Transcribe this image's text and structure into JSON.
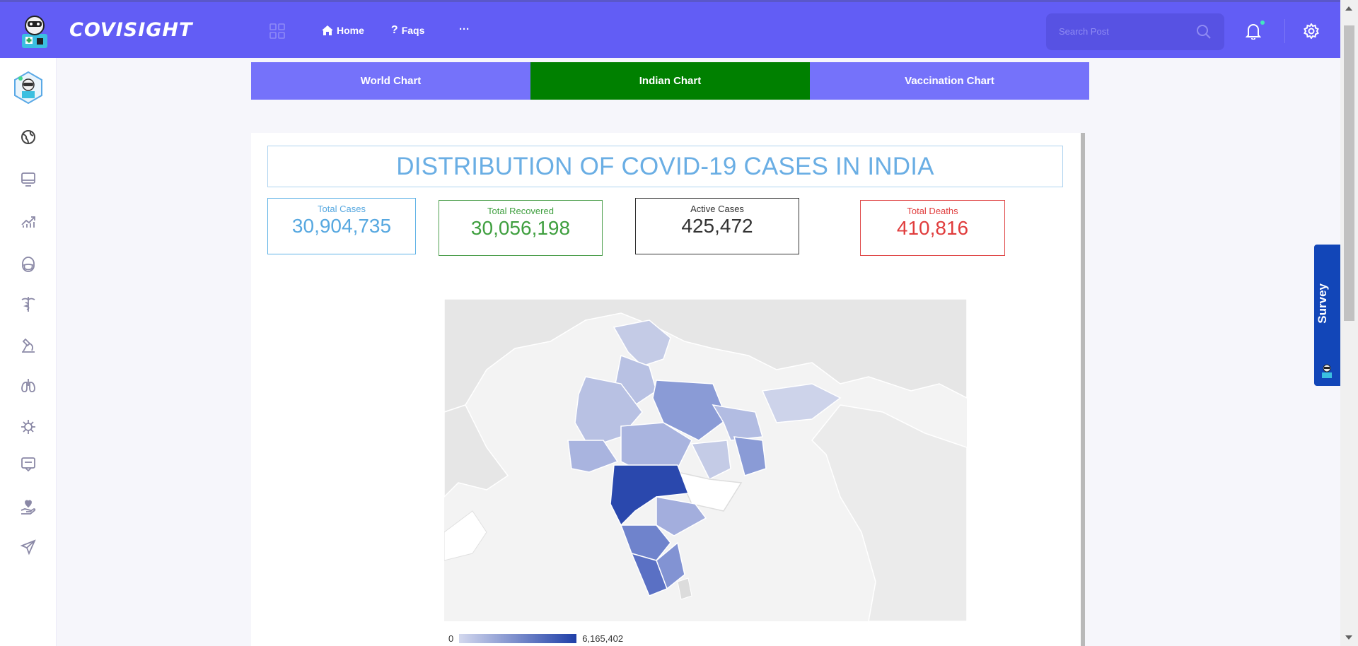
{
  "header": {
    "brand": "COVISIGHT",
    "nav": [
      {
        "icon": "home-icon",
        "label": "Home"
      },
      {
        "icon": "question-icon",
        "label": "Faqs"
      }
    ],
    "more": "···",
    "search_placeholder": "Search Post"
  },
  "sidebar": {
    "icons": [
      "globe-icon",
      "monitor-icon",
      "trend-chart-icon",
      "mask-face-icon",
      "caduceus-icon",
      "microscope-icon",
      "lungs-icon",
      "virus-icon",
      "chat-box-icon",
      "heart-hand-icon",
      "send-icon"
    ]
  },
  "tabs": [
    {
      "label": "World Chart",
      "active": false
    },
    {
      "label": "Indian Chart",
      "active": true
    },
    {
      "label": "Vaccination Chart",
      "active": false
    }
  ],
  "dashboard": {
    "title": "DISTRIBUTION OF COVID-19 CASES IN INDIA",
    "stats": {
      "total_cases": {
        "label": "Total Cases",
        "value": "30,904,735"
      },
      "total_recovered": {
        "label": "Total Recovered",
        "value": "30,056,198"
      },
      "active_cases": {
        "label": "Active Cases",
        "value": "425,472"
      },
      "total_deaths": {
        "label": "Total Deaths",
        "value": "410,816"
      }
    },
    "legend": {
      "min": "0",
      "max": "6,165,402"
    }
  },
  "survey": {
    "label": "Survey"
  },
  "colors": {
    "header": "#625df5",
    "tab": "#7572fa",
    "tab_active": "#008000",
    "map_low": "#d3d8ee",
    "map_high": "#1f3fa8"
  }
}
